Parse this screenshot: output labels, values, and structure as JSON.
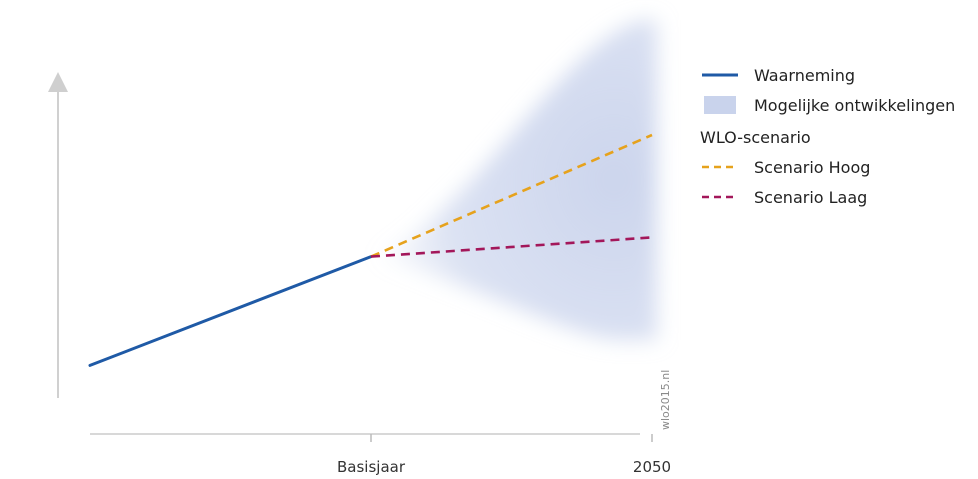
{
  "chart_data": {
    "type": "line",
    "title": "",
    "xlabel": "",
    "ylabel": "",
    "x_ticks": [
      "Basisjaar",
      "2050"
    ],
    "grid": false,
    "legend_position": "right",
    "observation": {
      "name": "Waarneming",
      "color": "#1f5aa6",
      "points": [
        [
          0,
          0.28
        ],
        [
          1,
          0.62
        ]
      ]
    },
    "band": {
      "name": "Mogelijke ontwikkelingen",
      "color": "#c9d3ec"
    },
    "section_heading": "WLO-scenario",
    "scenarios": [
      {
        "name": "Scenario Hoog",
        "color": "#e6a21c",
        "points": [
          [
            1,
            0.62
          ],
          [
            2,
            1.0
          ]
        ]
      },
      {
        "name": "Scenario Laag",
        "color": "#a3175a",
        "points": [
          [
            1,
            0.62
          ],
          [
            2,
            0.68
          ]
        ]
      }
    ],
    "watermark": "wlo2015.nl"
  }
}
